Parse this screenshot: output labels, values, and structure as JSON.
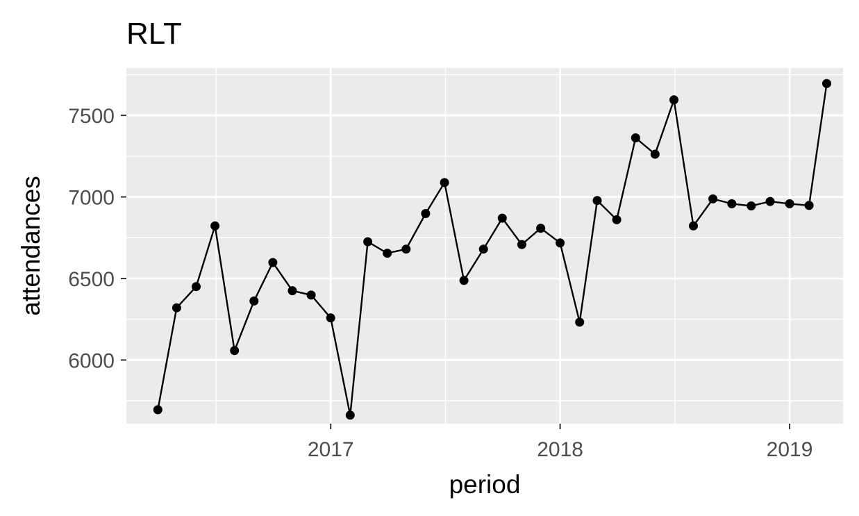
{
  "chart_data": {
    "type": "line",
    "title": "RLT",
    "xlabel": "period",
    "ylabel": "attendances",
    "x_ticks": [
      "2017",
      "2018",
      "2019"
    ],
    "y_ticks": [
      "6000",
      "6500",
      "7000",
      "7500"
    ],
    "ylim": [
      5610,
      7790
    ],
    "xlim": [
      "2016-02-11",
      "2019-03-27"
    ],
    "grid": true,
    "series": [
      {
        "points": [
          [
            "2016-04-01",
            5695
          ],
          [
            "2016-05-01",
            6320
          ],
          [
            "2016-06-01",
            6450
          ],
          [
            "2016-07-01",
            6822
          ],
          [
            "2016-08-01",
            6058
          ],
          [
            "2016-09-01",
            6362
          ],
          [
            "2016-10-01",
            6598
          ],
          [
            "2016-11-01",
            6425
          ],
          [
            "2016-12-01",
            6398
          ],
          [
            "2017-01-01",
            6258
          ],
          [
            "2017-02-01",
            5662
          ],
          [
            "2017-03-01",
            6725
          ],
          [
            "2017-04-01",
            6655
          ],
          [
            "2017-05-01",
            6680
          ],
          [
            "2017-06-01",
            6898
          ],
          [
            "2017-07-01",
            7088
          ],
          [
            "2017-08-01",
            6488
          ],
          [
            "2017-09-01",
            6680
          ],
          [
            "2017-10-01",
            6870
          ],
          [
            "2017-11-01",
            6708
          ],
          [
            "2017-12-01",
            6808
          ],
          [
            "2018-01-01",
            6718
          ],
          [
            "2018-02-01",
            6232
          ],
          [
            "2018-03-01",
            6978
          ],
          [
            "2018-04-01",
            6860
          ],
          [
            "2018-05-01",
            7362
          ],
          [
            "2018-06-01",
            7262
          ],
          [
            "2018-07-01",
            7595
          ],
          [
            "2018-08-01",
            6822
          ],
          [
            "2018-09-01",
            6988
          ],
          [
            "2018-10-01",
            6958
          ],
          [
            "2018-11-01",
            6945
          ],
          [
            "2018-12-01",
            6972
          ],
          [
            "2019-01-01",
            6958
          ],
          [
            "2019-02-01",
            6948
          ],
          [
            "2019-03-01",
            7695
          ]
        ]
      }
    ],
    "colors": {
      "panel": "#ebebeb",
      "grid": "#ffffff",
      "line": "#000000",
      "tick_text": "#4d4d4d"
    }
  }
}
